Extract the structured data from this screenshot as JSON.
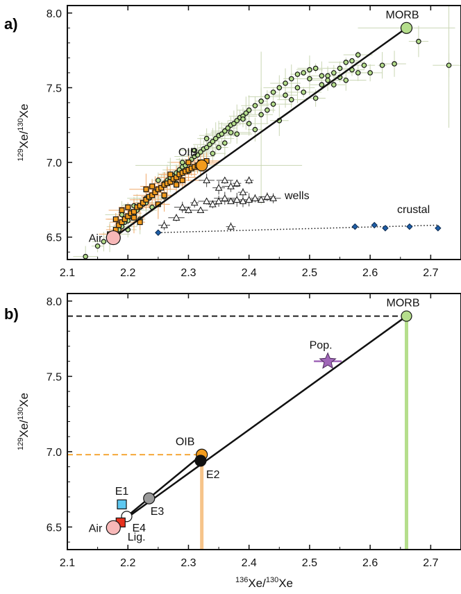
{
  "chart_data": [
    {
      "panel_label": "a)",
      "type": "scatter",
      "ylabel": "129Xe/130Xe",
      "xlabel": "",
      "xlim": [
        2.1,
        2.75
      ],
      "ylim": [
        6.35,
        8.05
      ],
      "xticks": [
        "2.1",
        "2.2",
        "2.3",
        "2.4",
        "2.5",
        "2.6",
        "2.7"
      ],
      "yticks": [
        "6.5",
        "7.0",
        "7.5",
        "8.0"
      ],
      "end_members": [
        {
          "name": "MORB",
          "x": 2.66,
          "y": 7.9,
          "color": "#b5de8c"
        },
        {
          "name": "OIB",
          "x": 2.322,
          "y": 6.98,
          "color": "#f39c1d"
        },
        {
          "name": "Air",
          "x": 2.176,
          "y": 6.496,
          "color": "#f7b8b8"
        }
      ],
      "mixing_line": {
        "x": [
          2.176,
          2.66
        ],
        "y": [
          6.496,
          7.9
        ]
      },
      "series": [
        {
          "name": "",
          "marker": "circle",
          "color": "#b5de8c",
          "x": [
            2.13,
            2.15,
            2.16,
            2.17,
            2.18,
            2.185,
            2.19,
            2.195,
            2.2,
            2.205,
            2.21,
            2.215,
            2.22,
            2.225,
            2.23,
            2.235,
            2.24,
            2.245,
            2.25,
            2.255,
            2.26,
            2.265,
            2.27,
            2.275,
            2.28,
            2.285,
            2.29,
            2.295,
            2.3,
            2.305,
            2.31,
            2.315,
            2.32,
            2.325,
            2.33,
            2.335,
            2.34,
            2.345,
            2.35,
            2.355,
            2.36,
            2.365,
            2.37,
            2.375,
            2.38,
            2.385,
            2.39,
            2.395,
            2.4,
            2.41,
            2.42,
            2.43,
            2.44,
            2.45,
            2.46,
            2.47,
            2.48,
            2.49,
            2.5,
            2.51,
            2.52,
            2.53,
            2.54,
            2.55,
            2.56,
            2.57,
            2.58,
            2.59,
            2.6,
            2.62,
            2.64,
            2.68,
            2.73,
            2.2,
            2.22,
            2.24,
            2.26,
            2.28,
            2.3,
            2.32,
            2.34,
            2.36,
            2.38,
            2.4,
            2.42,
            2.44,
            2.46,
            2.48,
            2.5,
            2.52,
            2.54,
            2.56,
            2.58,
            2.19,
            2.21,
            2.23,
            2.25,
            2.27,
            2.29,
            2.31,
            2.33,
            2.35,
            2.37,
            2.39,
            2.41,
            2.43,
            2.45,
            2.47,
            2.49,
            2.51,
            2.53,
            2.55,
            2.57
          ],
          "y": [
            6.37,
            6.44,
            6.47,
            6.5,
            6.52,
            6.55,
            6.57,
            6.6,
            6.61,
            6.64,
            6.66,
            6.68,
            6.7,
            6.72,
            6.73,
            6.76,
            6.78,
            6.8,
            6.82,
            6.83,
            6.86,
            6.88,
            6.9,
            6.91,
            6.93,
            6.95,
            6.97,
            6.98,
            7.0,
            7.02,
            7.04,
            7.05,
            7.07,
            7.09,
            7.1,
            7.12,
            7.14,
            7.16,
            7.18,
            7.19,
            7.21,
            7.23,
            7.25,
            7.26,
            7.28,
            7.3,
            7.31,
            7.33,
            7.35,
            7.38,
            7.41,
            7.44,
            7.47,
            7.5,
            7.53,
            7.56,
            7.59,
            7.6,
            7.62,
            7.63,
            7.52,
            7.58,
            7.6,
            7.63,
            7.67,
            7.68,
            7.72,
            7.65,
            7.6,
            7.65,
            7.66,
            7.81,
            7.65,
            6.55,
            6.62,
            6.7,
            6.77,
            6.86,
            6.94,
            7.0,
            7.06,
            7.13,
            7.19,
            7.26,
            7.32,
            7.39,
            7.45,
            7.5,
            7.56,
            7.58,
            7.52,
            7.55,
            7.6,
            6.65,
            6.71,
            6.76,
            6.88,
            6.92,
            7.0,
            7.08,
            7.16,
            7.1,
            7.2,
            7.29,
            7.22,
            7.35,
            7.28,
            7.42,
            7.47,
            7.43,
            7.55,
            7.57,
            7.62
          ]
        },
        {
          "name": "",
          "marker": "square",
          "color": "#f39c1d",
          "x": [
            2.17,
            2.18,
            2.185,
            2.19,
            2.195,
            2.2,
            2.205,
            2.21,
            2.215,
            2.22,
            2.225,
            2.23,
            2.235,
            2.24,
            2.245,
            2.25,
            2.255,
            2.26,
            2.265,
            2.27,
            2.275,
            2.28,
            2.285,
            2.29,
            2.295,
            2.3,
            2.305,
            2.31,
            2.315,
            2.32,
            2.325,
            2.33,
            2.2,
            2.21,
            2.23,
            2.25,
            2.27,
            2.29,
            2.18,
            2.22,
            2.26,
            2.3,
            2.19,
            2.24,
            2.28
          ],
          "y": [
            6.52,
            6.55,
            6.58,
            6.6,
            6.62,
            6.64,
            6.66,
            6.67,
            6.7,
            6.71,
            6.73,
            6.75,
            6.77,
            6.78,
            6.8,
            6.82,
            6.83,
            6.85,
            6.86,
            6.87,
            6.89,
            6.9,
            6.92,
            6.93,
            6.94,
            6.95,
            6.96,
            6.97,
            6.98,
            7.0,
            6.99,
            7.01,
            6.7,
            6.63,
            6.82,
            6.72,
            6.92,
            6.88,
            6.62,
            6.6,
            6.78,
            7.0,
            6.68,
            6.84,
            6.85
          ]
        },
        {
          "name": "wells",
          "marker": "triangle",
          "color": "#ffffff",
          "x": [
            2.26,
            2.28,
            2.29,
            2.3,
            2.31,
            2.32,
            2.33,
            2.34,
            2.35,
            2.36,
            2.37,
            2.38,
            2.39,
            2.4,
            2.41,
            2.42,
            2.43,
            2.35,
            2.36,
            2.37,
            2.38,
            2.39,
            2.4,
            2.44,
            2.33,
            2.37
          ],
          "y": [
            6.58,
            6.63,
            6.7,
            6.68,
            6.73,
            6.68,
            6.74,
            6.72,
            6.74,
            6.76,
            6.74,
            6.75,
            6.74,
            6.75,
            6.76,
            6.75,
            6.77,
            6.83,
            6.88,
            6.84,
            6.86,
            6.8,
            6.88,
            6.76,
            6.88,
            6.57
          ]
        },
        {
          "name": "crustal",
          "marker": "diamond",
          "color": "#1f5fa8",
          "x": [
            2.25,
            2.575,
            2.607,
            2.625,
            2.665,
            2.712
          ],
          "y": [
            6.53,
            6.57,
            6.58,
            6.56,
            6.57,
            6.56
          ]
        }
      ],
      "crustal_trend": {
        "x": [
          2.25,
          2.712
        ],
        "y": [
          6.53,
          6.58
        ]
      }
    },
    {
      "panel_label": "b)",
      "type": "scatter",
      "ylabel": "129Xe/130Xe",
      "xlabel": "136Xe/130Xe",
      "xlim": [
        2.1,
        2.75
      ],
      "ylim": [
        6.35,
        8.05
      ],
      "xticks": [
        "2.1",
        "2.2",
        "2.3",
        "2.4",
        "2.5",
        "2.6",
        "2.7"
      ],
      "yticks": [
        "6.5",
        "7.0",
        "7.5",
        "8.0"
      ],
      "points": [
        {
          "name": "MORB",
          "x": 2.66,
          "y": 7.9,
          "marker": "circle",
          "color": "#b5de8c"
        },
        {
          "name": "OIB",
          "x": 2.322,
          "y": 6.98,
          "marker": "circle",
          "color": "#f39c1d"
        },
        {
          "name": "E2",
          "x": 2.32,
          "y": 6.94,
          "marker": "circle",
          "color": "#111111"
        },
        {
          "name": "E3",
          "x": 2.235,
          "y": 6.69,
          "marker": "circle",
          "color": "#9a9a9a"
        },
        {
          "name": "E4",
          "x": 2.198,
          "y": 6.57,
          "marker": "circle",
          "color": "#ffffff"
        },
        {
          "name": "E1",
          "x": 2.19,
          "y": 6.65,
          "marker": "square",
          "color": "#5ec8f0"
        },
        {
          "name": "Lig.",
          "x": 2.188,
          "y": 6.53,
          "marker": "square",
          "color": "#e8321e"
        },
        {
          "name": "Air",
          "x": 2.176,
          "y": 6.496,
          "marker": "circle",
          "color": "#f7b8b8"
        },
        {
          "name": "Pop.",
          "x": 2.53,
          "y": 7.6,
          "marker": "star",
          "color": "#a067b8"
        }
      ],
      "mixing_lines": [
        {
          "x": [
            2.176,
            2.66
          ],
          "y": [
            6.496,
            7.9
          ]
        },
        {
          "x": [
            2.176,
            2.322
          ],
          "y": [
            6.496,
            6.98
          ]
        }
      ],
      "reference_lines": [
        {
          "orientation": "horizontal",
          "value": 7.9,
          "from_x": 2.1,
          "to_x": 2.66,
          "color": "#111111",
          "dash": true
        },
        {
          "orientation": "horizontal",
          "value": 6.98,
          "from_x": 2.1,
          "to_x": 2.322,
          "color": "#f39c1d",
          "dash": true
        },
        {
          "orientation": "vertical",
          "value": 2.66,
          "from_y": 6.35,
          "to_y": 7.9,
          "color": "#b5de8c",
          "dash": false
        },
        {
          "orientation": "vertical",
          "value": 2.322,
          "from_y": 6.35,
          "to_y": 6.98,
          "color": "#f6c48a",
          "dash": false
        }
      ]
    }
  ],
  "labels": {
    "a_wells": "wells",
    "a_crustal": "crustal",
    "y_title_a": {
      "sup1": "129",
      "mid": "Xe/",
      "sup2": "130",
      "end": "Xe"
    },
    "y_title_b": {
      "sup1": "129",
      "mid": "Xe/",
      "sup2": "130",
      "end": "Xe"
    },
    "x_title_b": {
      "sup1": "136",
      "mid": "Xe/",
      "sup2": "130",
      "end": "Xe"
    }
  },
  "colors": {
    "error_bar": "#c9d6b3",
    "error_bar_orange": "#f0a868",
    "axis": "#111111"
  }
}
